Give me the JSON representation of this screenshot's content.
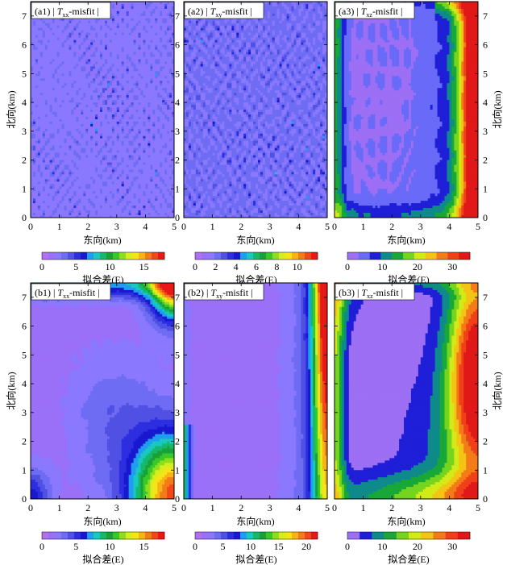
{
  "figure": {
    "x_axis_label": "东向(km)",
    "y_axis_label": "北向(km)",
    "colorbar_label": "拟合差(E)"
  },
  "chart_data": [
    {
      "type": "heatmap",
      "id": "a1",
      "panel_label": "(a1)",
      "component": "T",
      "component_sub": "xx",
      "title_suffix": "-misfit",
      "xlim": [
        0,
        5
      ],
      "ylim": [
        0,
        7.5
      ],
      "x_ticks": [
        "0",
        "1",
        "2",
        "3",
        "4",
        "5"
      ],
      "y_ticks": [
        "0",
        "1",
        "2",
        "3",
        "4",
        "5",
        "6",
        "7"
      ],
      "xlabel": "东向(km)",
      "ylabel": "北向(km)",
      "colorbar": {
        "range": [
          0,
          18
        ],
        "ticks": [
          "0",
          "5",
          "10",
          "15"
        ],
        "label": "拟合差(E)",
        "colors": [
          "#b070f0",
          "#9b70f8",
          "#8a78ff",
          "#6f6cf4",
          "#5050e4",
          "#2c2ee0",
          "#1818d0",
          "#1f9df0",
          "#19c8c0",
          "#16b86a",
          "#1aa038",
          "#39c82a",
          "#8fde1e",
          "#d4ee20",
          "#f4e418",
          "#f8b414",
          "#f47c18",
          "#f04818",
          "#e81818"
        ]
      },
      "pattern": "noise_all",
      "noise_amplitude": 6,
      "base_level": 2.5
    },
    {
      "type": "heatmap",
      "id": "a2",
      "panel_label": "(a2)",
      "component": "T",
      "component_sub": "xy",
      "title_suffix": "-misfit",
      "xlim": [
        0,
        5
      ],
      "ylim": [
        0,
        7.5
      ],
      "x_ticks": [
        "0",
        "1",
        "2",
        "3",
        "4",
        "5"
      ],
      "y_ticks": [
        "0",
        "1",
        "2",
        "3",
        "4",
        "5",
        "6",
        "7"
      ],
      "xlabel": "东向(km)",
      "ylabel": "",
      "colorbar": {
        "range": [
          0,
          12
        ],
        "ticks": [
          "0",
          "2",
          "4",
          "6",
          "8",
          "10"
        ],
        "label": "拟合差(E)",
        "colors": [
          "#b070f0",
          "#9b70f8",
          "#8a78ff",
          "#6f6cf4",
          "#5050e4",
          "#2c2ee0",
          "#1818d0",
          "#1f9df0",
          "#19c8c0",
          "#16b86a",
          "#1aa038",
          "#39c82a",
          "#8fde1e",
          "#d4ee20",
          "#f4e418",
          "#f8b414",
          "#f47c18",
          "#f04818",
          "#e81818"
        ]
      },
      "pattern": "noise_all",
      "noise_amplitude": 5,
      "base_level": 2.0
    },
    {
      "type": "heatmap",
      "id": "a3",
      "panel_label": "(a3)",
      "component": "T",
      "component_sub": "xz",
      "title_suffix": "-misfit",
      "xlim": [
        0,
        5
      ],
      "ylim": [
        0,
        7.5
      ],
      "x_ticks": [
        "0",
        "1",
        "2",
        "3",
        "4",
        "5"
      ],
      "y_ticks": [
        "0",
        "1",
        "2",
        "3",
        "4",
        "5",
        "6",
        "7"
      ],
      "xlabel": "东向(km)",
      "ylabel": "北向(km)",
      "colorbar": {
        "range": [
          0,
          35
        ],
        "ticks": [
          "0",
          "10",
          "20",
          "30"
        ],
        "label": "拟合差(E)",
        "colors": [
          "#9d6ff4",
          "#6a6af8",
          "#1f1fd8",
          "#0f8a8a",
          "#18a838",
          "#74d41e",
          "#d2ea18",
          "#f4c414",
          "#f47c18",
          "#f04018",
          "#e01818"
        ]
      },
      "pattern": "east_edge",
      "noise_amplitude": 4,
      "base_level": 2.0
    },
    {
      "type": "heatmap",
      "id": "b1",
      "panel_label": "(b1)",
      "component": "T",
      "component_sub": "xx",
      "title_suffix": "-misfit",
      "xlim": [
        0,
        5
      ],
      "ylim": [
        0,
        7.5
      ],
      "x_ticks": [
        "0",
        "1",
        "2",
        "3",
        "4",
        "5"
      ],
      "y_ticks": [
        "0",
        "1",
        "2",
        "3",
        "4",
        "5",
        "6",
        "7"
      ],
      "xlabel": "东向(km)",
      "ylabel": "北向(km)",
      "colorbar": {
        "range": [
          0,
          18
        ],
        "ticks": [
          "0",
          "5",
          "10",
          "15"
        ],
        "label": "拟合差(E)",
        "colors": [
          "#b070f0",
          "#9b70f8",
          "#8a78ff",
          "#6f6cf4",
          "#5050e4",
          "#2c2ee0",
          "#1818d0",
          "#1f9df0",
          "#19c8c0",
          "#16b86a",
          "#1aa038",
          "#39c82a",
          "#8fde1e",
          "#d4ee20",
          "#f4e418",
          "#f8b414",
          "#f47c18",
          "#f04818",
          "#e81818"
        ]
      },
      "pattern": "corners",
      "noise_amplitude": 0.8,
      "base_level": 1.0
    },
    {
      "type": "heatmap",
      "id": "b2",
      "panel_label": "(b2)",
      "component": "T",
      "component_sub": "xy",
      "title_suffix": "-misfit",
      "xlim": [
        0,
        5
      ],
      "ylim": [
        0,
        7.5
      ],
      "x_ticks": [
        "0",
        "1",
        "2",
        "3",
        "4",
        "5"
      ],
      "y_ticks": [
        "0",
        "1",
        "2",
        "3",
        "4",
        "5",
        "6",
        "7"
      ],
      "xlabel": "东向(km)",
      "ylabel": "",
      "colorbar": {
        "range": [
          0,
          22
        ],
        "ticks": [
          "0",
          "5",
          "10",
          "15",
          "20"
        ],
        "label": "拟合差(E)",
        "colors": [
          "#b070f0",
          "#9b70f8",
          "#8a78ff",
          "#6f6cf4",
          "#5050e4",
          "#2c2ee0",
          "#1818d0",
          "#1f9df0",
          "#19c8c0",
          "#16b86a",
          "#1aa038",
          "#39c82a",
          "#8fde1e",
          "#d4ee20",
          "#f4e418",
          "#f8b414",
          "#f47c18",
          "#f04818",
          "#e81818"
        ]
      },
      "pattern": "side_edges",
      "noise_amplitude": 0.9,
      "base_level": 1.2
    },
    {
      "type": "heatmap",
      "id": "b3",
      "panel_label": "(b3)",
      "component": "T",
      "component_sub": "xz",
      "title_suffix": "-misfit",
      "xlim": [
        0,
        5
      ],
      "ylim": [
        0,
        7.5
      ],
      "x_ticks": [
        "0",
        "1",
        "2",
        "3",
        "4",
        "5"
      ],
      "y_ticks": [
        "0",
        "1",
        "2",
        "3",
        "4",
        "5",
        "6",
        "7"
      ],
      "xlabel": "东向(km)",
      "ylabel": "北向(km)",
      "colorbar": {
        "range": [
          0,
          35
        ],
        "ticks": [
          "0",
          "10",
          "20",
          "30"
        ],
        "label": "拟合差(E)",
        "colors": [
          "#9d6ff4",
          "#1f1fd8",
          "#0f8a8a",
          "#18a838",
          "#74d41e",
          "#d2ea18",
          "#f4c414",
          "#f47c18",
          "#f04018",
          "#e01818"
        ]
      },
      "pattern": "edges_strong",
      "noise_amplitude": 0.3,
      "base_level": 1.0
    }
  ]
}
